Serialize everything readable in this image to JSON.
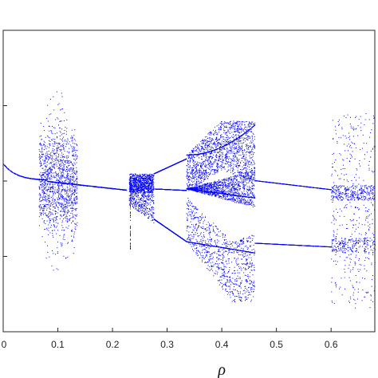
{
  "chart_data": {
    "type": "scatter",
    "title": "",
    "xlabel": "ρ",
    "ylabel": "",
    "xlim": [
      0.0,
      0.68
    ],
    "ylim": [
      -2.0,
      2.0
    ],
    "x_ticks": [
      0,
      0.1,
      0.2,
      0.3,
      0.4,
      0.5,
      0.6
    ],
    "x_tick_labels": [
      "0",
      "0.1",
      "0.2",
      "0.3",
      "0.4",
      "0.5",
      "0.6"
    ],
    "y_ticks": [
      -1.0,
      0.0,
      1.0
    ],
    "grid": false,
    "series": [
      {
        "color": "#0000ff",
        "description_points": [
          [
            0.0,
            0.23
          ],
          [
            0.02,
            0.2
          ],
          [
            0.04,
            0.08
          ],
          [
            0.06,
            0.01
          ],
          [
            0.08,
            0.0
          ],
          [
            0.1,
            -0.01
          ],
          [
            0.12,
            -0.03
          ],
          [
            0.15,
            -0.05
          ],
          [
            0.18,
            -0.08
          ],
          [
            0.22,
            -0.12
          ],
          [
            0.3,
            0.16
          ],
          [
            0.3,
            -0.1
          ],
          [
            0.3,
            -0.55
          ],
          [
            0.335,
            0.35
          ],
          [
            0.335,
            -0.1
          ],
          [
            0.335,
            -0.8
          ],
          [
            0.46,
            0.01
          ],
          [
            0.46,
            -0.82
          ],
          [
            0.6,
            -0.11
          ],
          [
            0.6,
            -0.87
          ]
        ]
      }
    ]
  }
}
